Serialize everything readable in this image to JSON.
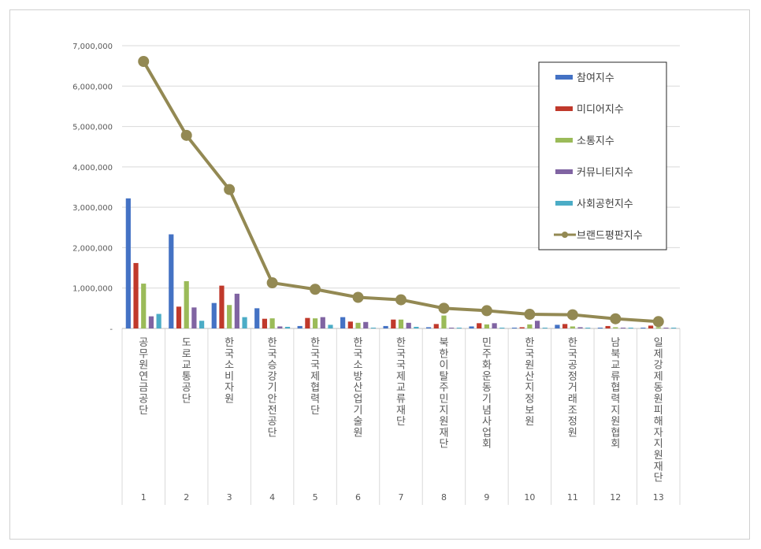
{
  "chart_data": {
    "type": "bar",
    "title": "",
    "xlabel": "",
    "ylabel": "",
    "ylim": [
      0,
      7000000
    ],
    "yticks": [
      "-",
      "1,000,000",
      "2,000,000",
      "3,000,000",
      "4,000,000",
      "5,000,000",
      "6,000,000",
      "7,000,000"
    ],
    "grid": true,
    "legend_position": "top-right",
    "categories": [
      "1",
      "2",
      "3",
      "4",
      "5",
      "6",
      "7",
      "8",
      "9",
      "10",
      "11",
      "12",
      "13"
    ],
    "category_names": [
      "공무원연금공단",
      "도로교통공단",
      "한국소비자원",
      "한국승강기안전공단",
      "한국국제협력단",
      "한국소방산업기술원",
      "한국국제교류재단",
      "북한이탈주민지원재단",
      "민주화운동기념사업회",
      "한국원산지정보원",
      "한국공정거래조정원",
      "남북교류협력지원협회",
      "일제강제동원피해자지원재단"
    ],
    "series": [
      {
        "name": "참여지수",
        "kind": "bar",
        "color": "#4472C4",
        "values": [
          3220000,
          2330000,
          630000,
          500000,
          60000,
          280000,
          60000,
          30000,
          50000,
          20000,
          90000,
          20000,
          20000
        ]
      },
      {
        "name": "미디어지수",
        "kind": "bar",
        "color": "#C0392B",
        "values": [
          1620000,
          540000,
          1060000,
          240000,
          260000,
          170000,
          220000,
          110000,
          130000,
          30000,
          110000,
          60000,
          70000
        ]
      },
      {
        "name": "소통지수",
        "kind": "bar",
        "color": "#9BBB59",
        "values": [
          1110000,
          1170000,
          580000,
          250000,
          250000,
          140000,
          220000,
          320000,
          100000,
          100000,
          50000,
          30000,
          30000
        ]
      },
      {
        "name": "커뮤니티지수",
        "kind": "bar",
        "color": "#8064A2",
        "values": [
          300000,
          520000,
          860000,
          50000,
          280000,
          160000,
          140000,
          20000,
          130000,
          190000,
          30000,
          20000,
          20000
        ]
      },
      {
        "name": "사회공헌지수",
        "kind": "bar",
        "color": "#4BACC6",
        "values": [
          360000,
          190000,
          280000,
          40000,
          90000,
          20000,
          40000,
          20000,
          20000,
          20000,
          20000,
          20000,
          20000
        ]
      },
      {
        "name": "브랜드평판지수",
        "kind": "line",
        "color": "#938953",
        "values": [
          6610000,
          4780000,
          3440000,
          1130000,
          970000,
          770000,
          710000,
          500000,
          440000,
          350000,
          340000,
          240000,
          170000
        ]
      }
    ]
  }
}
